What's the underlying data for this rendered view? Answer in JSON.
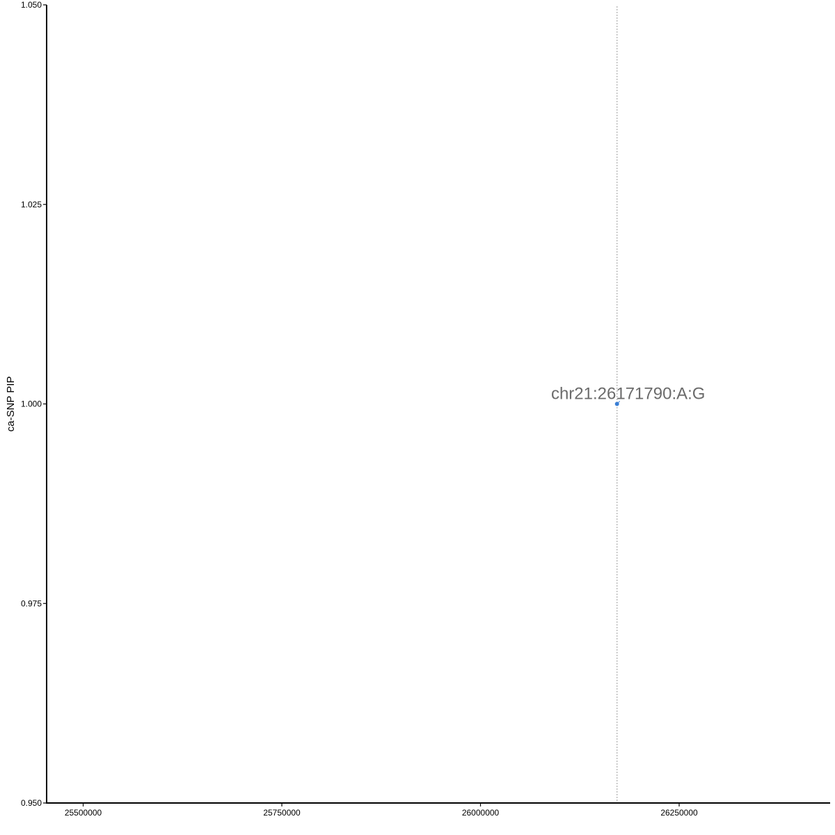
{
  "chart_data": {
    "type": "scatter",
    "title": "",
    "xlabel": "",
    "ylabel": "ca-SNP PIP",
    "xlim": [
      25454000,
      26440000
    ],
    "ylim": [
      0.95,
      1.05
    ],
    "x_ticks": [
      25500000,
      25750000,
      26000000,
      26250000
    ],
    "x_tick_labels": [
      "25500000",
      "25750000",
      "26000000",
      "26250000"
    ],
    "y_ticks": [
      0.95,
      0.975,
      1.0,
      1.025,
      1.05
    ],
    "y_tick_labels": [
      "0.950",
      "0.975",
      "1.000",
      "1.025",
      "1.050"
    ],
    "grid": false,
    "points": [
      {
        "x": 26171790,
        "y": 1.0,
        "label": "chr21:26171790:A:G"
      }
    ],
    "vline": {
      "x": 26171790,
      "style": "dotted"
    },
    "colors": {
      "point": "#3a7fd5",
      "label": "#6b6b6b",
      "vline": "#bbbbbb",
      "axis": "#000000"
    }
  }
}
